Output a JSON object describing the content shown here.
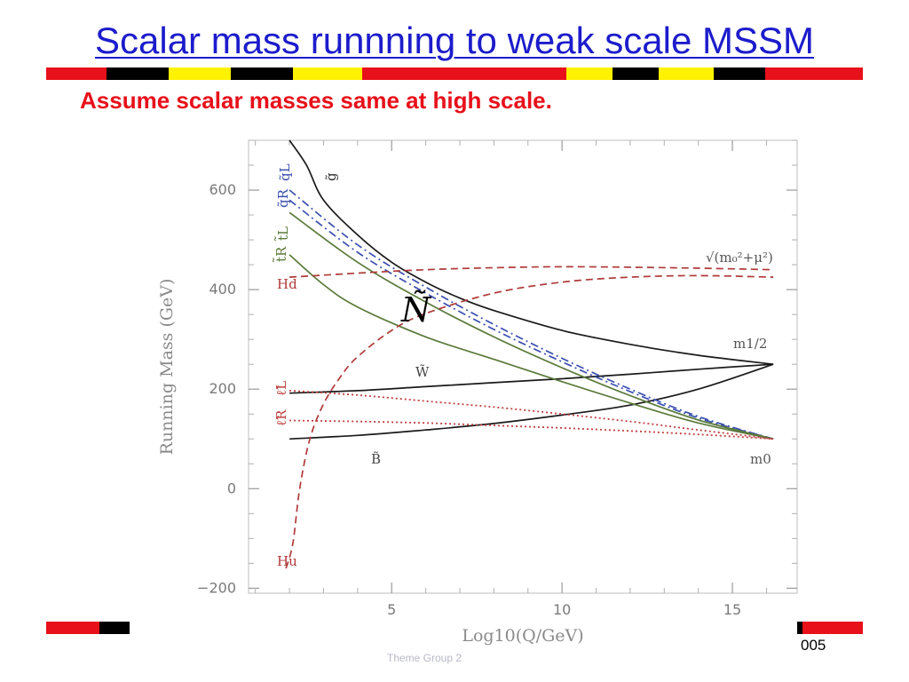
{
  "slide": {
    "title": "Scalar mass runnning to weak scale MSSM",
    "subtitle": "Assume scalar masses same at  high scale.",
    "page_number": "005",
    "footer_text": "Theme Group 2"
  },
  "colors": {
    "title": "#1c1ccc",
    "subtitle": "#e8101a",
    "stripe_red": "#e8101a",
    "stripe_yellow": "#fff200",
    "stripe_black": "#000000",
    "gaugino": "#1a1a1a",
    "squark": "#3a4fb0",
    "stop": "#5a7a3a",
    "higgs": "#b03a3a",
    "slepton": "#c04040"
  },
  "chart_data": {
    "type": "line",
    "title": "",
    "xlabel": "Log10(Q/GeV)",
    "ylabel": "Running Mass (GeV)",
    "xlim": [
      0.8,
      16.9
    ],
    "ylim": [
      -210,
      700
    ],
    "xticks": [
      5,
      10,
      15
    ],
    "xtick_labels": [
      "5",
      "10",
      "15"
    ],
    "yticks": [
      -200,
      0,
      200,
      400,
      600
    ],
    "ytick_labels": [
      "−200",
      "0",
      "200",
      "400",
      "600"
    ],
    "grid": false,
    "series": [
      {
        "name": "g̃",
        "label": "g̃",
        "style": "solid",
        "colorKey": "gaugino",
        "x": [
          2.0,
          2.5,
          3.0,
          4.0,
          5.0,
          6.0,
          7.0,
          8.0,
          10.0,
          12.0,
          14.0,
          16.2
        ],
        "y": [
          700,
          650,
          580,
          510,
          455,
          415,
          383,
          358,
          318,
          290,
          268,
          250
        ]
      },
      {
        "name": "W̃",
        "label": "W̃",
        "style": "solid",
        "colorKey": "gaugino",
        "x": [
          2.0,
          4.0,
          6.0,
          8.0,
          10.0,
          12.0,
          14.0,
          16.2
        ],
        "y": [
          192,
          197,
          205,
          213,
          221,
          230,
          240,
          250
        ]
      },
      {
        "name": "B̃",
        "label": "B̃",
        "style": "solid",
        "colorKey": "gaugino",
        "x": [
          2.0,
          4.0,
          6.0,
          8.0,
          10.0,
          12.0,
          14.0,
          16.2
        ],
        "y": [
          100,
          107,
          118,
          131,
          148,
          168,
          200,
          250
        ]
      },
      {
        "name": "q̃L",
        "label": "q̃L",
        "style": "dashdot",
        "colorKey": "squark",
        "x": [
          2.0,
          4.0,
          6.0,
          8.0,
          10.0,
          12.0,
          14.0,
          16.2
        ],
        "y": [
          600,
          490,
          405,
          330,
          262,
          200,
          145,
          100
        ]
      },
      {
        "name": "q̃R",
        "label": "q̃R",
        "style": "dashdot",
        "colorKey": "squark",
        "x": [
          2.0,
          4.0,
          6.0,
          8.0,
          10.0,
          12.0,
          14.0,
          16.2
        ],
        "y": [
          580,
          475,
          393,
          320,
          255,
          195,
          142,
          100
        ]
      },
      {
        "name": "t̃L",
        "label": "t̃L",
        "style": "solid",
        "colorKey": "stop",
        "x": [
          2.0,
          4.0,
          6.0,
          8.0,
          10.0,
          12.0,
          14.0,
          16.2
        ],
        "y": [
          555,
          455,
          375,
          305,
          243,
          187,
          138,
          100
        ]
      },
      {
        "name": "t̃R",
        "label": "t̃R",
        "style": "solid",
        "colorKey": "stop",
        "x": [
          2.0,
          3.0,
          4.0,
          6.0,
          8.0,
          10.0,
          12.0,
          14.0,
          16.2
        ],
        "y": [
          470,
          410,
          365,
          305,
          260,
          215,
          172,
          132,
          100
        ]
      },
      {
        "name": "Hd",
        "label": "Hd",
        "style": "dashed",
        "colorKey": "higgs",
        "x": [
          2.0,
          4.0,
          6.0,
          8.0,
          10.0,
          12.0,
          14.0,
          16.2
        ],
        "y": [
          425,
          433,
          440,
          444,
          446,
          445,
          443,
          440
        ]
      },
      {
        "name": "Hu",
        "label": "Hu",
        "style": "dashed",
        "colorKey": "higgs",
        "x": [
          1.9,
          2.1,
          2.3,
          2.6,
          3.0,
          3.5,
          4.0,
          5.0,
          6.0,
          8.0,
          10.0,
          12.0,
          14.0,
          16.2
        ],
        "y": [
          -160,
          -110,
          0,
          100,
          170,
          225,
          265,
          318,
          352,
          393,
          415,
          425,
          428,
          425
        ]
      },
      {
        "name": "ℓ̃L",
        "label": "ℓ̃L",
        "style": "dotted",
        "colorKey": "slepton",
        "x": [
          2.0,
          4.0,
          6.0,
          8.0,
          10.0,
          12.0,
          14.0,
          16.2
        ],
        "y": [
          197,
          188,
          176,
          164,
          150,
          135,
          118,
          100
        ]
      },
      {
        "name": "ℓ̃R",
        "label": "ℓ̃R",
        "style": "dotted",
        "colorKey": "slepton",
        "x": [
          2.0,
          4.0,
          6.0,
          8.0,
          10.0,
          12.0,
          14.0,
          16.2
        ],
        "y": [
          137,
          135,
          132,
          127,
          122,
          116,
          109,
          100
        ]
      }
    ],
    "annotations": [
      {
        "text": "√(m₀²+μ²)",
        "near": "right end of Hd/Hu curves"
      },
      {
        "text": "m1/2",
        "near": "gaugino convergence point"
      },
      {
        "text": "m0",
        "near": "scalar convergence point"
      },
      {
        "text": "Ñ",
        "near": "overlaid symbol near squark curves"
      }
    ]
  }
}
